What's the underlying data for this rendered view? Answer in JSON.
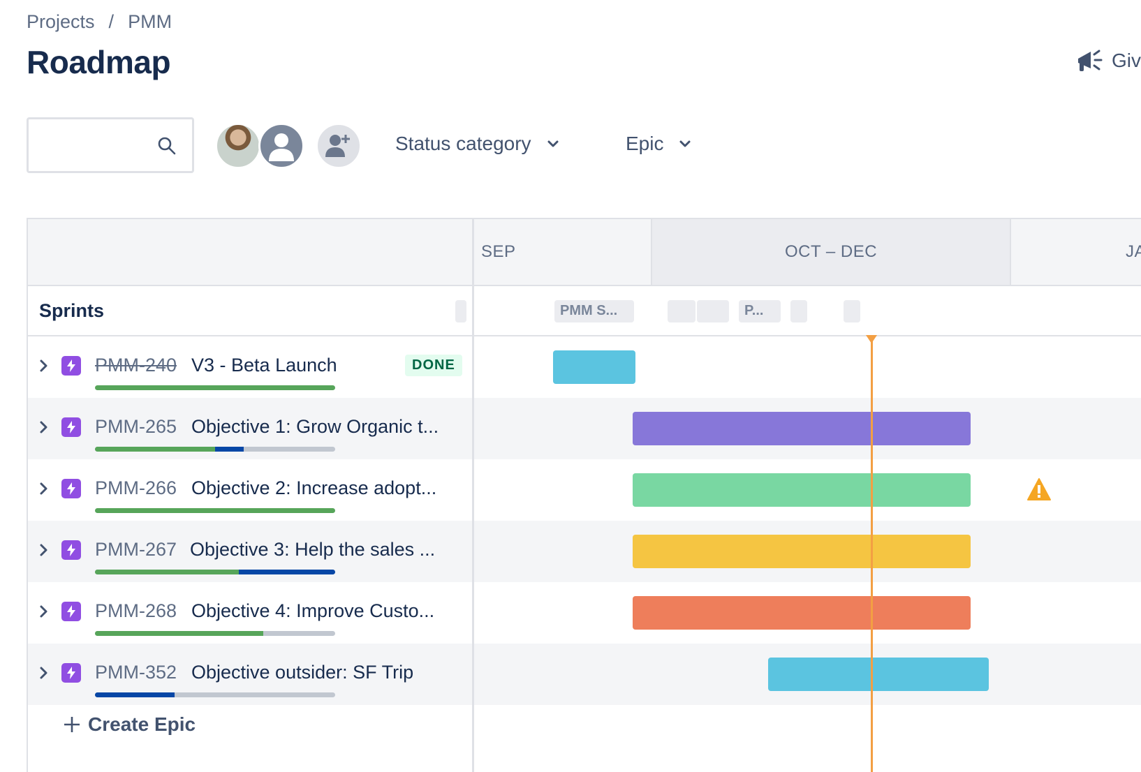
{
  "breadcrumb": {
    "root": "Projects",
    "separator": "/",
    "project": "PMM"
  },
  "page": {
    "title": "Roadmap",
    "feedback_label": "Giv"
  },
  "search": {
    "placeholder": ""
  },
  "filters": {
    "status_category": "Status category",
    "epic": "Epic"
  },
  "timeline": {
    "months": [
      "SEP",
      "OCT – DEC",
      "JA"
    ],
    "sprints_label": "Sprints",
    "sprint_chips": [
      "",
      "PMM S...",
      "",
      "",
      "P...",
      "",
      ""
    ]
  },
  "epics": [
    {
      "key": "PMM-240",
      "title": "V3 - Beta Launch",
      "status": "DONE",
      "progress_done": 1.0,
      "progress_inprogress": 0.0,
      "bar_color": "#5bc4e0"
    },
    {
      "key": "PMM-265",
      "title": "Objective 1: Grow Organic t...",
      "status": "",
      "progress_done": 0.5,
      "progress_inprogress": 0.12,
      "bar_color": "#8777d9"
    },
    {
      "key": "PMM-266",
      "title": "Objective 2: Increase adopt...",
      "status": "",
      "progress_done": 1.0,
      "progress_inprogress": 0.0,
      "bar_color": "#79d7a2",
      "warning": true
    },
    {
      "key": "PMM-267",
      "title": "Objective 3: Help the sales ...",
      "status": "",
      "progress_done": 0.6,
      "progress_inprogress": 0.4,
      "bar_color": "#f5c542"
    },
    {
      "key": "PMM-268",
      "title": "Objective 4: Improve Custo...",
      "status": "",
      "progress_done": 0.7,
      "progress_inprogress": 0.0,
      "bar_color": "#ee7e5b"
    },
    {
      "key": "PMM-352",
      "title": "Objective outsider: SF Trip",
      "status": "",
      "progress_done": 0.0,
      "progress_inprogress": 0.33,
      "bar_color": "#5bc4e0"
    }
  ],
  "create_epic_label": "Create Epic",
  "colors": {
    "epic_icon": "#904ee2",
    "today_line": "#f39f43",
    "done_progress": "#57a55a",
    "inprogress_progress": "#0747a6"
  }
}
